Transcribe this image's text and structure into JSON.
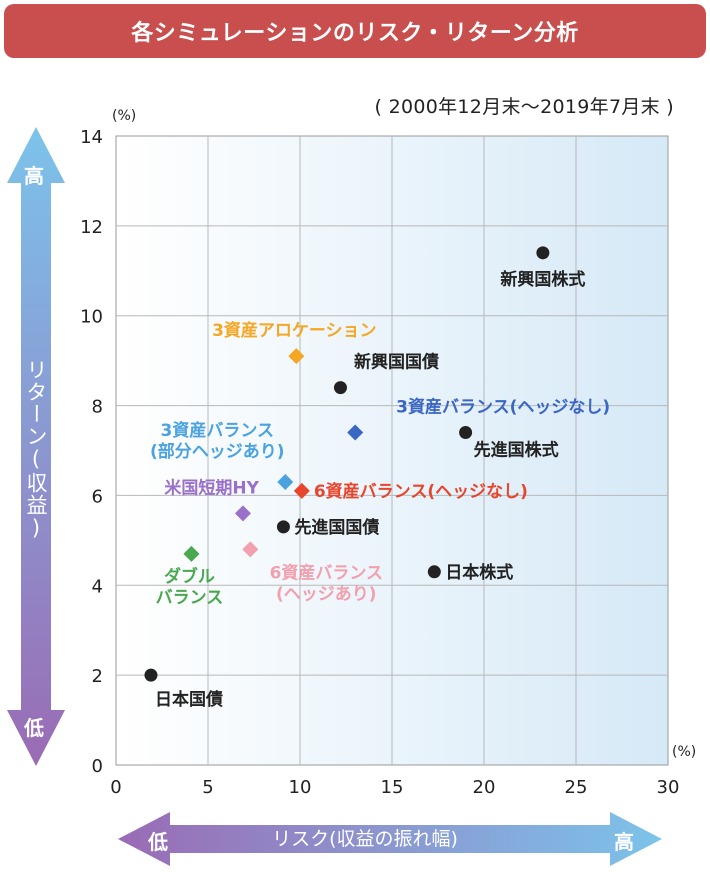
{
  "title": "各シミュレーションのリスク・リターン分析",
  "period": "( 2000年12月末〜2019年7月末 )",
  "y_axis": {
    "label": "リターン(収益)",
    "high": "高",
    "low": "低",
    "unit": "(%)"
  },
  "x_axis": {
    "label": "リスク(収益の振れ幅)",
    "high": "高",
    "low": "低",
    "unit": "(%)"
  },
  "colors": {
    "black": "#222222",
    "orange": "#f5a623",
    "blue": "#3a66c4",
    "lightblue": "#4aa3df",
    "purple": "#9a70c8",
    "red": "#e8452c",
    "pink": "#f29fae",
    "green": "#4aa84e",
    "plot_bg_left": "#ffffff",
    "plot_bg_right": "#d6e9f7"
  },
  "chart_data": {
    "type": "scatter",
    "xlim": [
      0,
      30
    ],
    "ylim": [
      0,
      14
    ],
    "x_ticks": [
      0,
      5,
      10,
      15,
      20,
      25,
      30
    ],
    "y_ticks": [
      0,
      2,
      4,
      6,
      8,
      10,
      12,
      14
    ],
    "grid": true,
    "points": [
      {
        "name": "新興国株式",
        "x": 23.2,
        "y": 11.4,
        "marker": "circle",
        "color": "#222222"
      },
      {
        "name": "3資産アロケーション",
        "x": 9.8,
        "y": 9.1,
        "marker": "diamond",
        "color": "#f5a623"
      },
      {
        "name": "新興国国債",
        "x": 12.2,
        "y": 8.4,
        "marker": "circle",
        "color": "#222222"
      },
      {
        "name": "3資産バランス(ヘッジなし)",
        "x": 13.0,
        "y": 7.4,
        "marker": "diamond",
        "color": "#3a66c4"
      },
      {
        "name": "先進国株式",
        "x": 19.0,
        "y": 7.4,
        "marker": "circle",
        "color": "#222222"
      },
      {
        "name": "3資産バランス(部分ヘッジあり)",
        "x": 9.2,
        "y": 6.3,
        "marker": "diamond",
        "color": "#4aa3df"
      },
      {
        "name": "6資産バランス(ヘッジなし)",
        "x": 10.1,
        "y": 6.1,
        "marker": "diamond",
        "color": "#e8452c"
      },
      {
        "name": "米国短期HY",
        "x": 6.9,
        "y": 5.6,
        "marker": "diamond",
        "color": "#9a70c8"
      },
      {
        "name": "先進国国債",
        "x": 9.1,
        "y": 5.3,
        "marker": "circle",
        "color": "#222222"
      },
      {
        "name": "6資産バランス(ヘッジあり)",
        "x": 7.3,
        "y": 4.8,
        "marker": "diamond",
        "color": "#f29fae"
      },
      {
        "name": "ダブルバランス",
        "x": 4.1,
        "y": 4.7,
        "marker": "diamond",
        "color": "#4aa84e"
      },
      {
        "name": "日本株式",
        "x": 17.3,
        "y": 4.3,
        "marker": "circle",
        "color": "#222222"
      },
      {
        "name": "日本国債",
        "x": 1.9,
        "y": 2.0,
        "marker": "circle",
        "color": "#222222"
      }
    ]
  }
}
